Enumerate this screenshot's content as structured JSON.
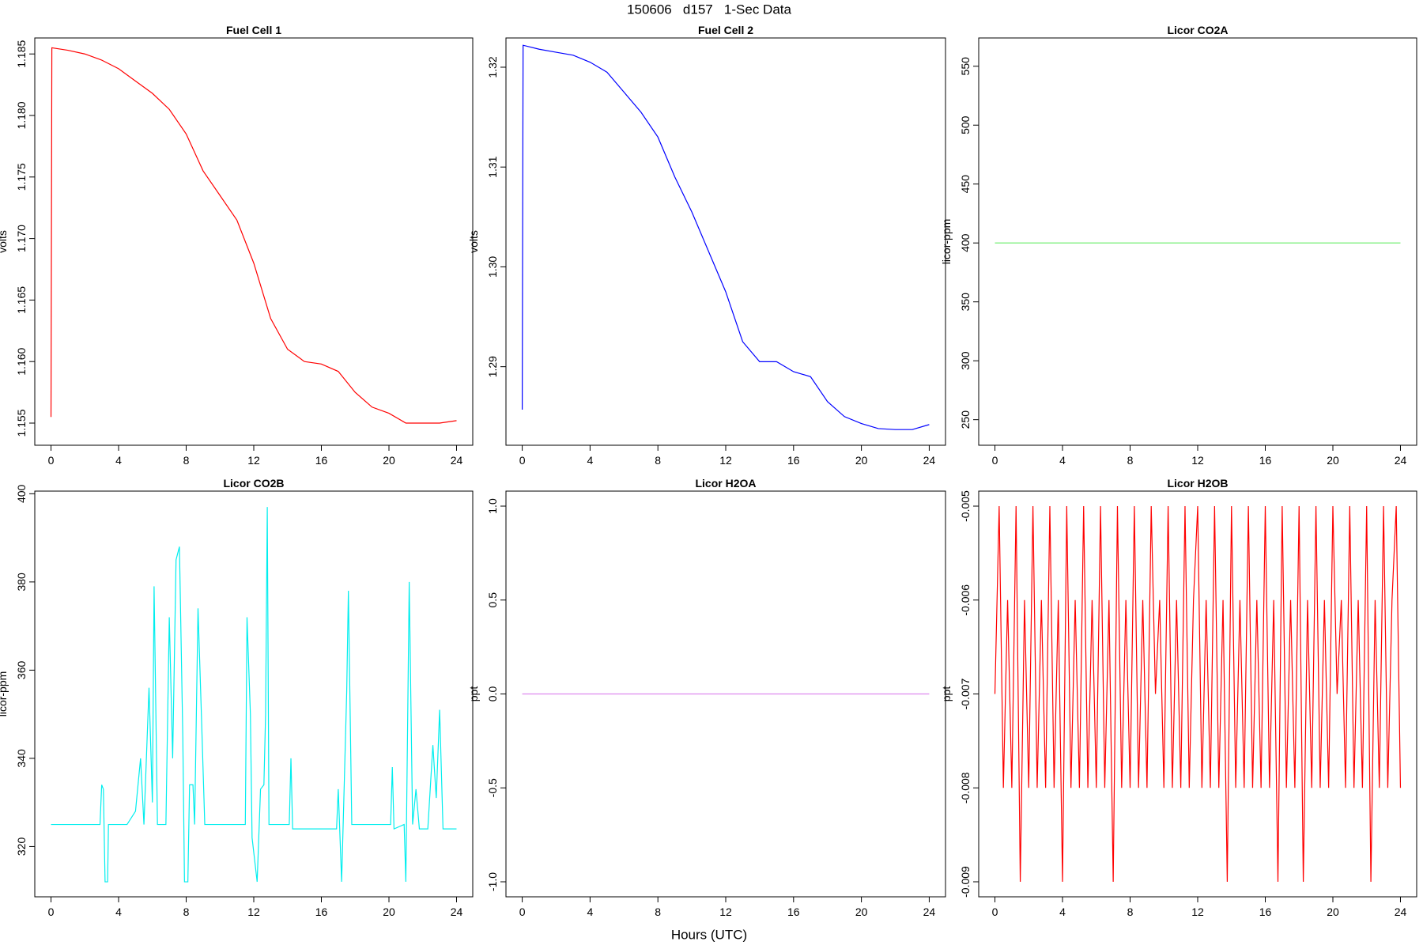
{
  "title": "150606   d157   1-Sec Data",
  "x_label": "Hours (UTC)",
  "chart_data": [
    {
      "type": "line",
      "title": "Fuel Cell 1",
      "y_label": "volts",
      "color": "#ff0000",
      "x": [
        0,
        0.05,
        1,
        2,
        3,
        4,
        5,
        6,
        7,
        8,
        9,
        10,
        11,
        12,
        13,
        14,
        15,
        16,
        17,
        18,
        19,
        20,
        21,
        22,
        23,
        24
      ],
      "values": [
        1.1555,
        1.1855,
        1.1853,
        1.185,
        1.1845,
        1.1838,
        1.1828,
        1.1818,
        1.1805,
        1.1785,
        1.1755,
        1.1735,
        1.1715,
        1.168,
        1.1635,
        1.161,
        1.16,
        1.1598,
        1.1592,
        1.1575,
        1.1563,
        1.1558,
        1.155,
        1.155,
        1.155,
        1.1552
      ],
      "xlim": [
        -0.96,
        24.96
      ],
      "xticks": [
        0,
        4,
        8,
        12,
        16,
        20,
        24
      ],
      "ylim": [
        1.1532,
        1.1863
      ],
      "yticks": [
        1.155,
        {
          "value": 1.16,
          "label": "1.160"
        },
        1.165,
        {
          "value": 1.17,
          "label": "1.170"
        },
        1.175,
        {
          "value": 1.18,
          "label": "1.180"
        },
        1.185
      ]
    },
    {
      "type": "line",
      "title": "Fuel Cell 2",
      "y_label": "volts",
      "color": "#0000ff",
      "x": [
        0,
        0.05,
        1,
        2,
        3,
        4,
        5,
        6,
        7,
        8,
        9,
        10,
        11,
        12,
        13,
        14,
        15,
        16,
        17,
        18,
        19,
        20,
        21,
        22,
        23,
        24
      ],
      "values": [
        1.2857,
        1.3222,
        1.3218,
        1.3215,
        1.3212,
        1.3205,
        1.3195,
        1.3175,
        1.3155,
        1.313,
        1.309,
        1.3055,
        1.3015,
        1.2975,
        1.2925,
        1.2905,
        1.2905,
        1.2895,
        1.289,
        1.2865,
        1.285,
        1.2843,
        1.2838,
        1.2837,
        1.2837,
        1.2842
      ],
      "xlim": [
        -0.96,
        24.96
      ],
      "xticks": [
        0,
        4,
        8,
        12,
        16,
        20,
        24
      ],
      "ylim": [
        1.28213,
        1.32293
      ],
      "yticks": [
        1.29,
        {
          "value": 1.3,
          "label": "1.30"
        },
        1.31,
        1.32
      ]
    },
    {
      "type": "line",
      "title": "Licor CO2A",
      "y_label": "licor-ppm",
      "color": "#66ee66",
      "x": [
        0,
        24
      ],
      "values": [
        400,
        400
      ],
      "xlim": [
        -0.96,
        24.96
      ],
      "xticks": [
        0,
        4,
        8,
        12,
        16,
        20,
        24
      ],
      "ylim": [
        228.3,
        574
      ],
      "yticks": [
        250,
        300,
        350,
        400,
        450,
        500,
        550
      ]
    },
    {
      "type": "line",
      "title": "Licor CO2B",
      "y_label": "licor-ppm",
      "color": "#00eeee",
      "x": [
        0,
        2.9,
        3.0,
        3.1,
        3.2,
        3.35,
        3.4,
        4.5,
        5,
        5.3,
        5.5,
        5.8,
        6.0,
        6.1,
        6.3,
        6.8,
        7.0,
        7.2,
        7.4,
        7.6,
        7.8,
        7.9,
        8.1,
        8.2,
        8.4,
        8.5,
        8.7,
        8.9,
        9.1,
        11.5,
        11.6,
        11.8,
        11.9,
        12.2,
        12.4,
        12.6,
        12.7,
        12.8,
        12.9,
        14.1,
        14.2,
        14.3,
        16.9,
        17.0,
        17.2,
        17.5,
        17.6,
        17.8,
        20.1,
        20.2,
        20.3,
        20.9,
        21.0,
        21.2,
        21.4,
        21.6,
        21.8,
        22.3,
        22.6,
        22.8,
        23.0,
        23.2,
        24
      ],
      "values": [
        325,
        325,
        334,
        333,
        312,
        312,
        325,
        325,
        328,
        340,
        325,
        356,
        330,
        379,
        325,
        325,
        372,
        340,
        385,
        388,
        345,
        312,
        312,
        334,
        334,
        325,
        374,
        350,
        325,
        325,
        372,
        350,
        322,
        312,
        333,
        334,
        350,
        397,
        325,
        325,
        340,
        324,
        324,
        333,
        312,
        355,
        378,
        325,
        325,
        338,
        324,
        325,
        312,
        380,
        325,
        333,
        324,
        324,
        343,
        331,
        351,
        324,
        324
      ],
      "xlim": [
        -0.96,
        24.96
      ],
      "xticks": [
        0,
        4,
        8,
        12,
        16,
        20,
        24
      ],
      "ylim": [
        308.6,
        400.6
      ],
      "yticks": [
        320,
        340,
        360,
        380,
        400
      ]
    },
    {
      "type": "line",
      "title": "Licor H2OA",
      "y_label": "ppt",
      "color": "#dd88ee",
      "x": [
        0,
        24
      ],
      "values": [
        0,
        0
      ],
      "xlim": [
        -0.96,
        24.96
      ],
      "xticks": [
        0,
        4,
        8,
        12,
        16,
        20,
        24
      ],
      "ylim": [
        -1.08,
        1.08
      ],
      "yticks": [
        {
          "value": -1,
          "label": "-1.0"
        },
        -0.5,
        {
          "value": 0,
          "label": "0.0"
        },
        0.5,
        {
          "value": 1,
          "label": "1.0"
        }
      ]
    },
    {
      "type": "line",
      "title": "Licor H2OB",
      "y_label": "ppt",
      "color": "#ff0000",
      "x": [
        0,
        0.25,
        0.5,
        0.75,
        1,
        1.25,
        1.5,
        1.75,
        2,
        2.25,
        2.5,
        2.75,
        3,
        3.25,
        3.5,
        3.75,
        4,
        4.25,
        4.5,
        4.75,
        5,
        5.25,
        5.5,
        5.75,
        6,
        6.25,
        6.5,
        6.75,
        7,
        7.25,
        7.5,
        7.75,
        8,
        8.25,
        8.5,
        8.75,
        9,
        9.25,
        9.5,
        9.75,
        10,
        10.25,
        10.5,
        10.75,
        11,
        11.25,
        11.5,
        11.75,
        12,
        12.25,
        12.5,
        12.75,
        13,
        13.25,
        13.5,
        13.75,
        14,
        14.25,
        14.5,
        14.75,
        15,
        15.25,
        15.5,
        15.75,
        16,
        16.25,
        16.5,
        16.75,
        17,
        17.25,
        17.5,
        17.75,
        18,
        18.25,
        18.5,
        18.75,
        19,
        19.25,
        19.5,
        19.75,
        20,
        20.25,
        20.5,
        20.75,
        21,
        21.25,
        21.5,
        21.75,
        22,
        22.25,
        22.5,
        22.75,
        23,
        23.25,
        23.5,
        23.75,
        24
      ],
      "values": [
        -0.007,
        -0.005,
        -0.008,
        -0.006,
        -0.008,
        -0.005,
        -0.009,
        -0.006,
        -0.008,
        -0.005,
        -0.008,
        -0.006,
        -0.008,
        -0.005,
        -0.008,
        -0.006,
        -0.009,
        -0.005,
        -0.008,
        -0.006,
        -0.008,
        -0.005,
        -0.008,
        -0.006,
        -0.008,
        -0.005,
        -0.008,
        -0.006,
        -0.009,
        -0.005,
        -0.008,
        -0.006,
        -0.008,
        -0.005,
        -0.008,
        -0.006,
        -0.008,
        -0.005,
        -0.007,
        -0.006,
        -0.008,
        -0.005,
        -0.008,
        -0.006,
        -0.008,
        -0.005,
        -0.008,
        -0.006,
        -0.005,
        -0.008,
        -0.006,
        -0.008,
        -0.005,
        -0.008,
        -0.006,
        -0.009,
        -0.005,
        -0.008,
        -0.006,
        -0.008,
        -0.005,
        -0.008,
        -0.006,
        -0.008,
        -0.005,
        -0.008,
        -0.006,
        -0.009,
        -0.005,
        -0.008,
        -0.006,
        -0.008,
        -0.005,
        -0.009,
        -0.006,
        -0.008,
        -0.005,
        -0.008,
        -0.006,
        -0.008,
        -0.005,
        -0.007,
        -0.006,
        -0.008,
        -0.005,
        -0.008,
        -0.006,
        -0.008,
        -0.005,
        -0.009,
        -0.006,
        -0.008,
        -0.005,
        -0.008,
        -0.006,
        -0.005,
        -0.008
      ],
      "xlim": [
        -0.96,
        24.96
      ],
      "xticks": [
        0,
        4,
        8,
        12,
        16,
        20,
        24
      ],
      "ylim": [
        -0.00916,
        -0.00484
      ],
      "yticks": [
        -0.009,
        -0.008,
        -0.007,
        -0.006,
        -0.005
      ]
    }
  ]
}
